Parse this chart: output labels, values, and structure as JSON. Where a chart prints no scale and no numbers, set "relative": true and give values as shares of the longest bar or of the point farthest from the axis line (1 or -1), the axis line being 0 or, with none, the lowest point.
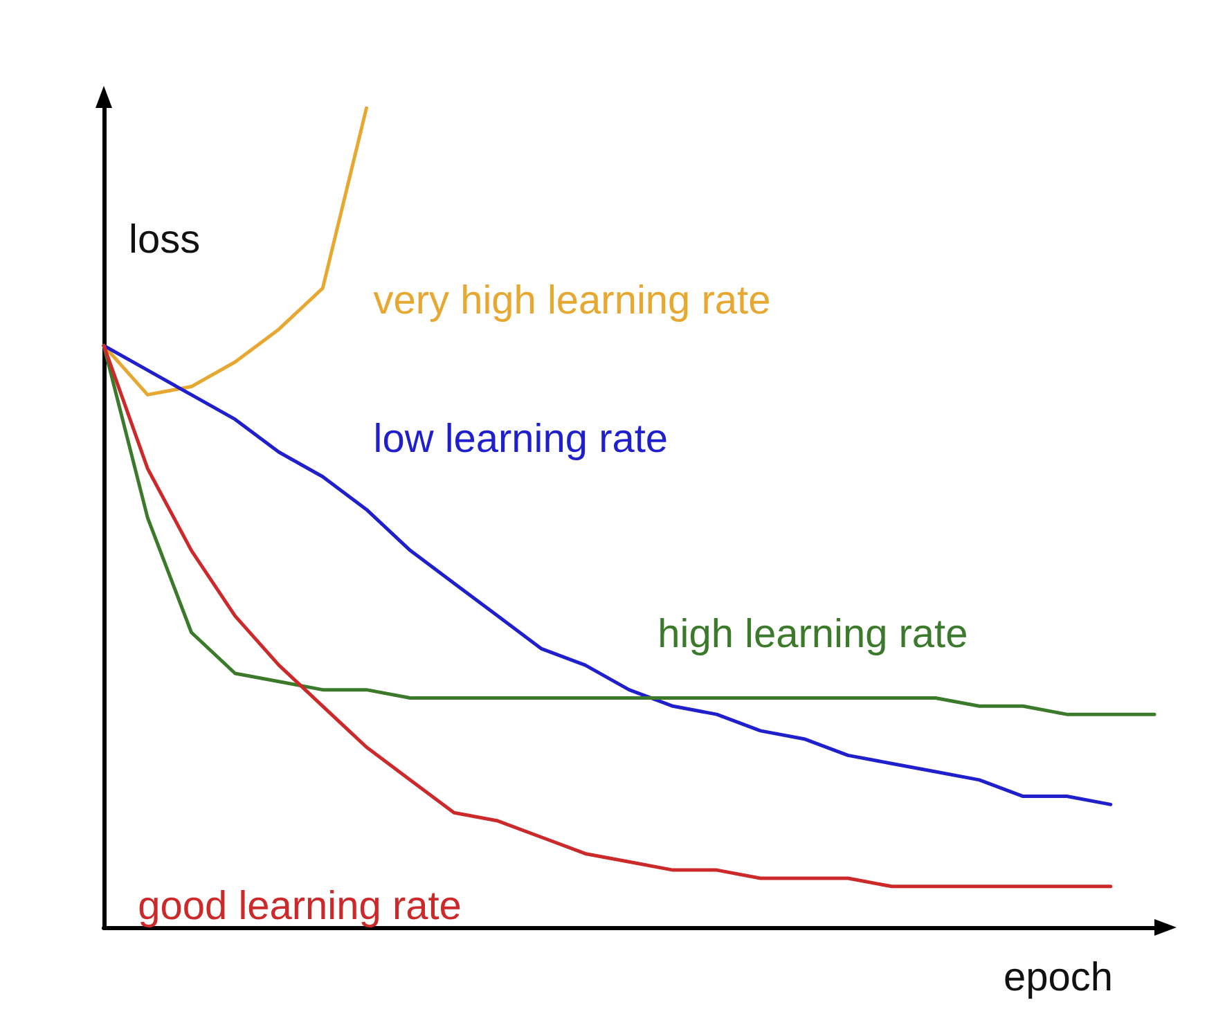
{
  "chart_data": {
    "type": "line",
    "relative": true,
    "xlabel": "epoch",
    "ylabel": "loss",
    "categories": [
      null,
      null,
      null,
      null,
      null,
      null,
      null,
      null,
      null,
      null,
      null,
      null,
      null,
      null,
      null,
      null,
      null,
      null,
      null,
      null,
      null,
      null,
      null,
      null,
      null
    ],
    "legend": false,
    "grid": false,
    "marker": "none",
    "line_style": "solid",
    "series": [
      {
        "name": "very high learning rate",
        "color": "#e6a830",
        "values": [
          0.71,
          0.65,
          0.66,
          0.69,
          0.73,
          0.78,
          1,
          null,
          null,
          null,
          null,
          null,
          null,
          null,
          null,
          null,
          null,
          null,
          null,
          null,
          null,
          null,
          null,
          null,
          null
        ]
      },
      {
        "name": "low learning rate",
        "color": "#1f1fcc",
        "values": [
          0.71,
          0.68,
          0.65,
          0.62,
          0.58,
          0.55,
          0.51,
          0.46,
          0.42,
          0.38,
          0.34,
          0.32,
          0.29,
          0.27,
          0.26,
          0.24,
          0.23,
          0.21,
          0.2,
          0.19,
          0.18,
          0.16,
          0.16,
          0.15,
          null
        ]
      },
      {
        "name": "high learning rate",
        "color": "#3a7a2a",
        "values": [
          0.71,
          0.5,
          0.36,
          0.31,
          0.3,
          0.29,
          0.29,
          0.28,
          0.28,
          0.28,
          0.28,
          0.28,
          0.28,
          0.28,
          0.28,
          0.28,
          0.28,
          0.28,
          0.28,
          0.28,
          0.27,
          0.27,
          0.26,
          0.26,
          0.26
        ]
      },
      {
        "name": "good learning rate",
        "color": "#cc2a2a",
        "values": [
          0.71,
          0.56,
          0.46,
          0.38,
          0.32,
          0.27,
          0.22,
          0.18,
          0.14,
          0.13,
          0.11,
          0.09,
          0.08,
          0.07,
          0.07,
          0.06,
          0.06,
          0.06,
          0.05,
          0.05,
          0.05,
          0.05,
          0.05,
          0.05,
          null
        ]
      }
    ]
  }
}
